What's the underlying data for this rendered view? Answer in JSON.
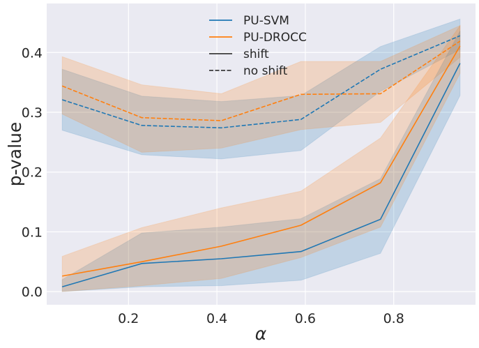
{
  "chart_data": {
    "type": "line",
    "title": "",
    "xlabel": "α",
    "ylabel": "p-value",
    "xlim": [
      0.015,
      0.985
    ],
    "ylim": [
      -0.022,
      0.482
    ],
    "xticks": [
      0.2,
      0.4,
      0.6,
      0.8
    ],
    "xtick_labels": [
      "0.2",
      "0.4",
      "0.6",
      "0.8"
    ],
    "yticks": [
      0.0,
      0.1,
      0.2,
      0.3,
      0.4
    ],
    "ytick_labels": [
      "0.0",
      "0.1",
      "0.2",
      "0.3",
      "0.4"
    ],
    "grid": true,
    "legend_position": "upper center",
    "legend": [
      {
        "label": "PU-SVM",
        "kind": "color",
        "color": "#1f77b4"
      },
      {
        "label": "PU-DROCC",
        "kind": "color",
        "color": "#ff7f0e"
      },
      {
        "label": "shift",
        "kind": "style",
        "dash": "solid"
      },
      {
        "label": "no shift",
        "kind": "style",
        "dash": "dashed"
      }
    ],
    "x": [
      0.05,
      0.23,
      0.41,
      0.59,
      0.77,
      0.95
    ],
    "series": [
      {
        "name": "PU-SVM no shift",
        "method": "PU-SVM",
        "condition": "no shift",
        "color": "#1f77b4",
        "dash": "dashed",
        "values": [
          0.321,
          0.278,
          0.274,
          0.288,
          0.372,
          0.428
        ],
        "lower": [
          0.27,
          0.229,
          0.222,
          0.236,
          0.335,
          0.405
        ],
        "upper": [
          0.372,
          0.327,
          0.318,
          0.328,
          0.41,
          0.456
        ]
      },
      {
        "name": "PU-DROCC no shift",
        "method": "PU-DROCC",
        "condition": "no shift",
        "color": "#ff7f0e",
        "dash": "dashed",
        "values": [
          0.344,
          0.291,
          0.286,
          0.33,
          0.331,
          0.419
        ],
        "lower": [
          0.297,
          0.233,
          0.24,
          0.271,
          0.283,
          0.392
        ],
        "upper": [
          0.393,
          0.346,
          0.331,
          0.385,
          0.385,
          0.445
        ]
      },
      {
        "name": "PU-SVM shift",
        "method": "PU-SVM",
        "condition": "shift",
        "color": "#1f77b4",
        "dash": "solid",
        "values": [
          0.008,
          0.047,
          0.055,
          0.067,
          0.121,
          0.382
        ],
        "lower": [
          0.0,
          0.008,
          0.01,
          0.019,
          0.064,
          0.328
        ],
        "upper": [
          0.02,
          0.098,
          0.108,
          0.122,
          0.189,
          0.436
        ]
      },
      {
        "name": "PU-DROCC shift",
        "method": "PU-DROCC",
        "condition": "shift",
        "color": "#ff7f0e",
        "dash": "solid",
        "values": [
          0.026,
          0.05,
          0.076,
          0.111,
          0.182,
          0.411
        ],
        "lower": [
          0.0,
          0.01,
          0.022,
          0.057,
          0.108,
          0.365
        ],
        "upper": [
          0.059,
          0.107,
          0.14,
          0.168,
          0.257,
          0.445
        ]
      }
    ]
  }
}
